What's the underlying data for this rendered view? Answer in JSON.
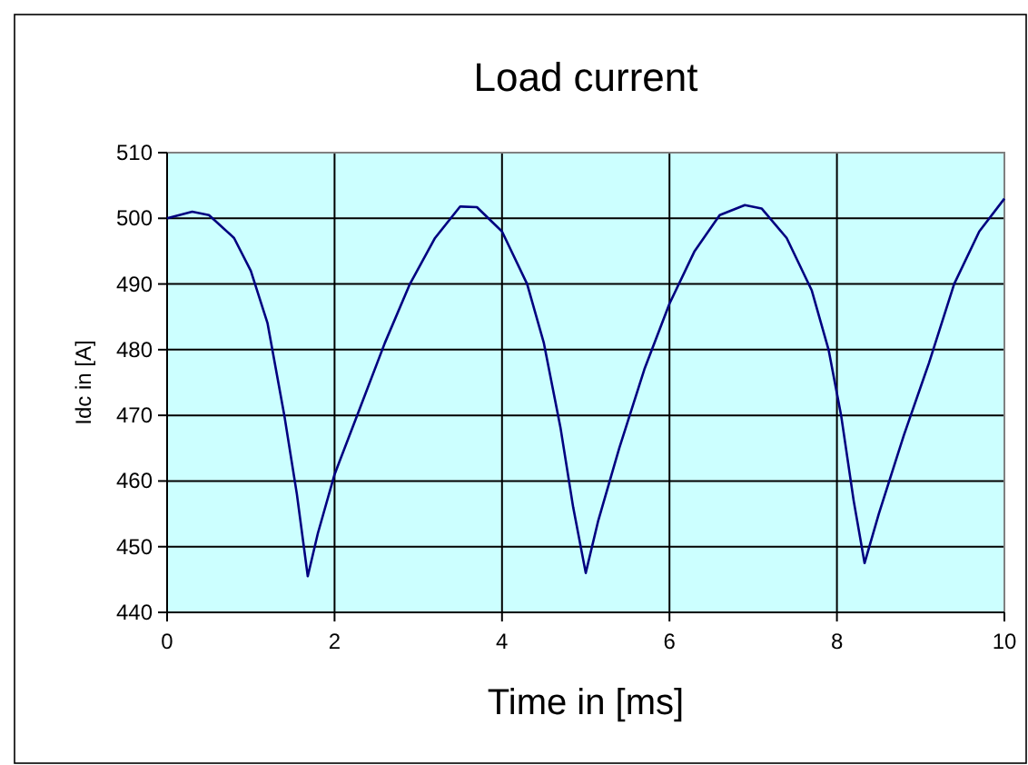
{
  "chart_data": {
    "type": "line",
    "title": "Load current",
    "xlabel": "Time in [ms]",
    "ylabel": "Idc in [A]",
    "x": [
      0,
      0.3,
      0.5,
      0.8,
      1.0,
      1.2,
      1.4,
      1.55,
      1.68,
      1.8,
      2.0,
      2.3,
      2.6,
      2.9,
      3.2,
      3.5,
      3.7,
      4.0,
      4.3,
      4.5,
      4.7,
      4.85,
      5.0,
      5.15,
      5.4,
      5.7,
      6.0,
      6.3,
      6.6,
      6.9,
      7.1,
      7.4,
      7.7,
      7.9,
      8.05,
      8.2,
      8.33,
      8.5,
      8.8,
      9.1,
      9.4,
      9.7,
      10
    ],
    "series": [
      {
        "color": "#000080",
        "values": [
          500,
          501,
          500.5,
          497,
          492,
          484,
          470,
          458,
          445.5,
          452,
          461,
          471,
          481,
          490,
          497,
          501.8,
          501.7,
          498,
          490,
          481,
          468,
          456,
          446,
          454,
          465,
          477,
          487,
          495,
          500.5,
          502,
          501.5,
          497,
          489,
          480,
          470,
          457,
          447.5,
          455,
          467,
          478,
          490,
          498,
          503
        ]
      }
    ],
    "xlim": [
      0,
      10
    ],
    "xticks": [
      0,
      2,
      4,
      6,
      8,
      10
    ],
    "ylim": [
      440,
      510
    ],
    "yticks": [
      440,
      450,
      460,
      470,
      480,
      490,
      500,
      510
    ],
    "grid": true,
    "marker": "none",
    "line_style": "solid"
  }
}
